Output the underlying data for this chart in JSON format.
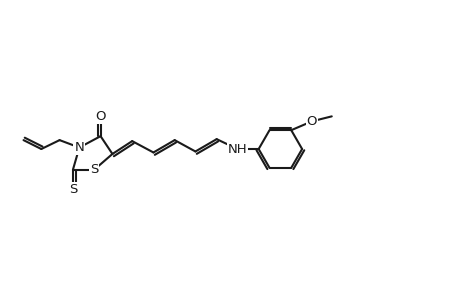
{
  "background_color": "#ffffff",
  "line_color": "#1a1a1a",
  "line_width": 1.5,
  "fig_width": 4.6,
  "fig_height": 3.0,
  "dpi": 100,
  "font_size": 9.5,
  "xlim": [
    0,
    9.2
  ],
  "ylim": [
    0,
    3.0
  ]
}
